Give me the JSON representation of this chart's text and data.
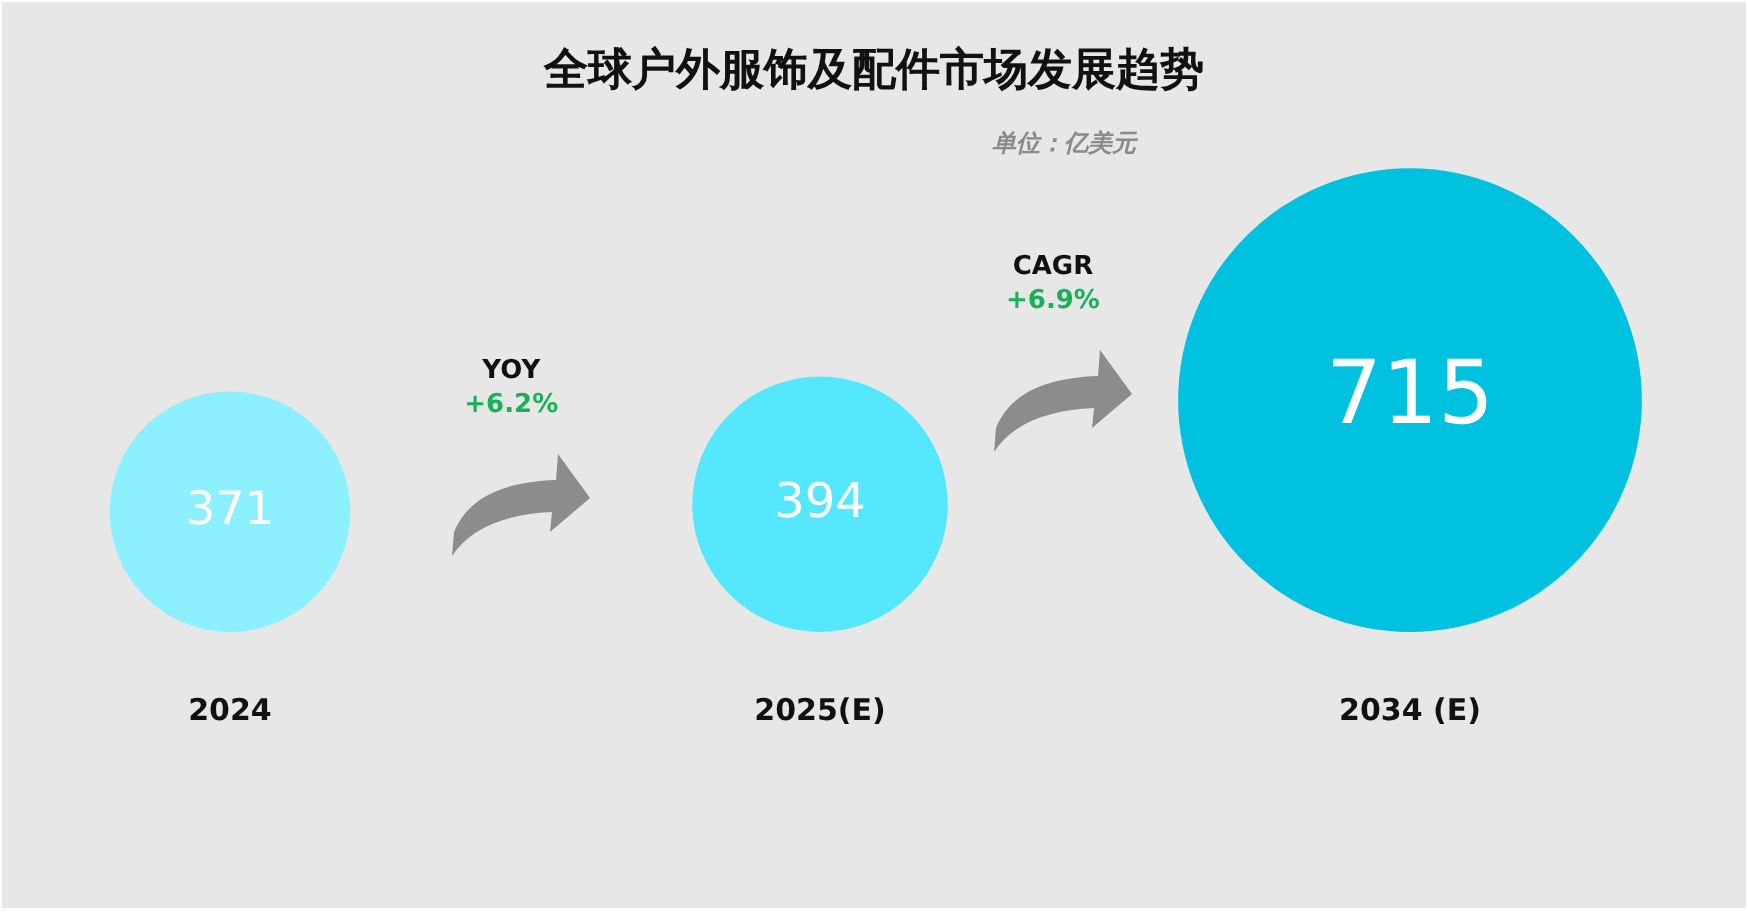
{
  "chart_data": {
    "type": "other",
    "title": "全球户外服饰及配件市场发展趋势",
    "categories": [
      "2024",
      "2025(E)",
      "2034 (E)"
    ],
    "values": [
      371,
      394,
      715
    ],
    "colors": [
      "#8cf0fe",
      "#55e7fe",
      "#00c1df"
    ],
    "data_labels": true,
    "annotations": [
      "单位：亿美元",
      "YOY",
      "+6.2%",
      "CAGR",
      "+6.9%"
    ]
  }
}
